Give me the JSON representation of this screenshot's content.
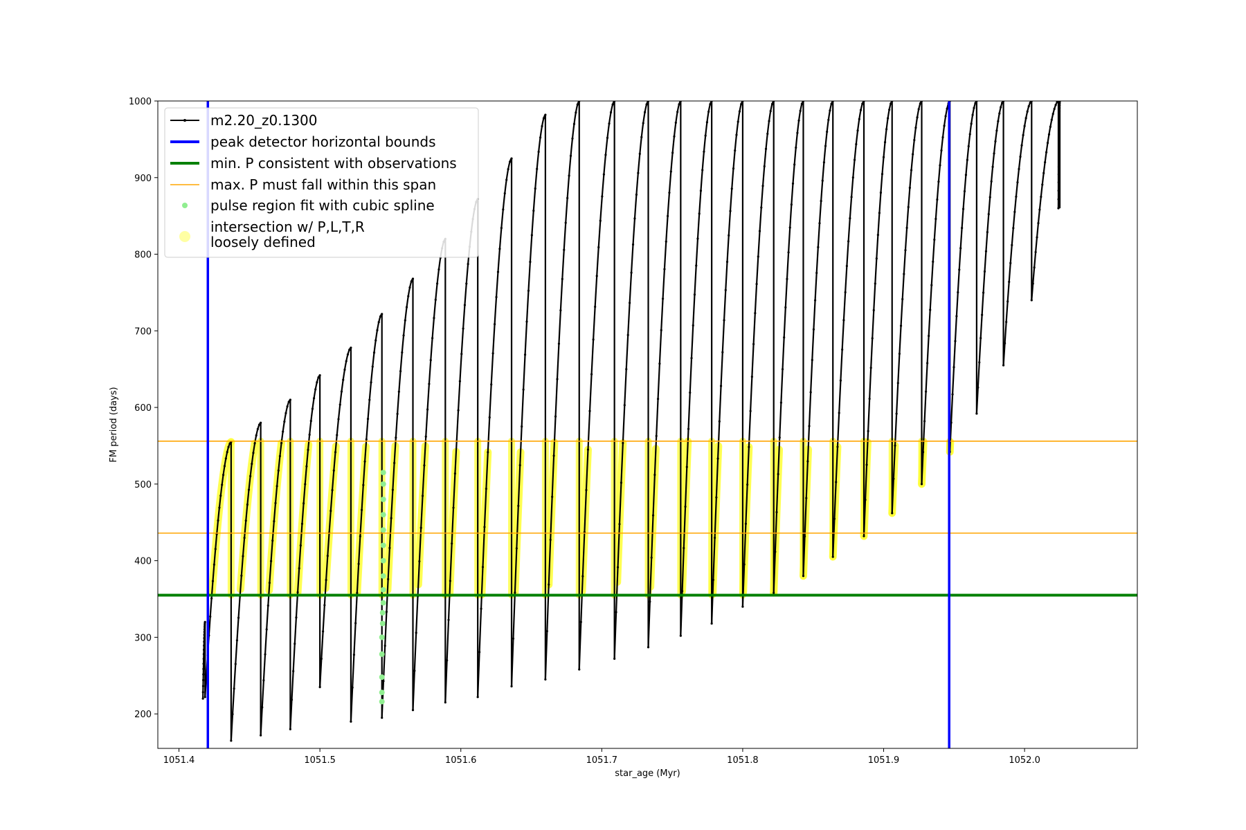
{
  "chart_data": {
    "type": "line",
    "xlabel": "star_age (Myr)",
    "ylabel": "FM period (days)",
    "xlim": [
      1051.385,
      1052.08
    ],
    "ylim": [
      155,
      1000
    ],
    "xticks": [
      1051.4,
      1051.5,
      1051.6,
      1051.7,
      1051.8,
      1051.9,
      1052.0
    ],
    "xtick_labels": [
      "1051.4",
      "1051.5",
      "1051.6",
      "1051.7",
      "1051.8",
      "1051.9",
      "1052.0"
    ],
    "yticks": [
      200,
      300,
      400,
      500,
      600,
      700,
      800,
      900,
      1000
    ],
    "ytick_labels": [
      "200",
      "300",
      "400",
      "500",
      "600",
      "700",
      "800",
      "900",
      "1000"
    ],
    "grid": false,
    "legend_position": "top-left",
    "legend": [
      {
        "key": "model",
        "label": "m2.20_z0.1300",
        "color": "#000000",
        "style": "line-marker"
      },
      {
        "key": "peak_bounds",
        "label": "peak detector horizontal bounds",
        "color": "#0000ff",
        "style": "thick-line"
      },
      {
        "key": "min_p",
        "label": "min. P consistent with observations",
        "color": "#008000",
        "style": "thick-line"
      },
      {
        "key": "max_p",
        "label": "max. P must fall within this span",
        "color": "#ffa500",
        "style": "thin-line"
      },
      {
        "key": "spline",
        "label": "pulse region fit with cubic spline",
        "color": "#90ee90",
        "style": "dot"
      },
      {
        "key": "intersection",
        "label": "intersection w/ P,L,T,R",
        "label_line2": "loosely defined",
        "color": "#ffff66",
        "style": "big-dot"
      }
    ],
    "vertical_lines": [
      {
        "name": "peak detector horizontal bounds",
        "x": 1051.4205,
        "color": "#0000ff"
      },
      {
        "name": "peak detector horizontal bounds",
        "x": 1051.9465,
        "color": "#0000ff"
      }
    ],
    "horizontal_lines": [
      {
        "name": "min. P consistent with observations",
        "y": 355,
        "color": "#008000"
      },
      {
        "name": "max. P must fall within this span",
        "y": 436,
        "color": "#ffa500"
      },
      {
        "name": "max. P must fall within this span",
        "y": 556,
        "color": "#ffa500"
      }
    ],
    "series": [
      {
        "name": "m2.20_z0.1300",
        "color": "#000000",
        "pulses": [
          {
            "start": 1051.417,
            "drop": 1051.4185,
            "min": 220,
            "peak": 320
          },
          {
            "start": 1051.4185,
            "drop": 1051.437,
            "min": 222,
            "peak": 555
          },
          {
            "start": 1051.437,
            "drop": 1051.458,
            "min": 165,
            "peak": 580
          },
          {
            "start": 1051.458,
            "drop": 1051.479,
            "min": 172,
            "peak": 610
          },
          {
            "start": 1051.479,
            "drop": 1051.5,
            "min": 180,
            "peak": 642
          },
          {
            "start": 1051.5,
            "drop": 1051.522,
            "min": 235,
            "peak": 678
          },
          {
            "start": 1051.522,
            "drop": 1051.544,
            "min": 190,
            "peak": 722
          },
          {
            "start": 1051.544,
            "drop": 1051.566,
            "min": 195,
            "peak": 768
          },
          {
            "start": 1051.566,
            "drop": 1051.589,
            "min": 205,
            "peak": 820
          },
          {
            "start": 1051.589,
            "drop": 1051.612,
            "min": 215,
            "peak": 872
          },
          {
            "start": 1051.612,
            "drop": 1051.636,
            "min": 222,
            "peak": 925
          },
          {
            "start": 1051.636,
            "drop": 1051.66,
            "min": 236,
            "peak": 982
          },
          {
            "start": 1051.66,
            "drop": 1051.684,
            "min": 245,
            "peak": 1000
          },
          {
            "start": 1051.684,
            "drop": 1051.709,
            "min": 258,
            "peak": 1000
          },
          {
            "start": 1051.709,
            "drop": 1051.733,
            "min": 272,
            "peak": 1000
          },
          {
            "start": 1051.733,
            "drop": 1051.756,
            "min": 287,
            "peak": 1000
          },
          {
            "start": 1051.756,
            "drop": 1051.778,
            "min": 302,
            "peak": 1000
          },
          {
            "start": 1051.778,
            "drop": 1051.8,
            "min": 318,
            "peak": 1000
          },
          {
            "start": 1051.8,
            "drop": 1051.822,
            "min": 340,
            "peak": 1000
          },
          {
            "start": 1051.822,
            "drop": 1051.843,
            "min": 358,
            "peak": 1000
          },
          {
            "start": 1051.843,
            "drop": 1051.864,
            "min": 380,
            "peak": 1000
          },
          {
            "start": 1051.864,
            "drop": 1051.886,
            "min": 405,
            "peak": 1000
          },
          {
            "start": 1051.886,
            "drop": 1051.906,
            "min": 432,
            "peak": 1000
          },
          {
            "start": 1051.906,
            "drop": 1051.927,
            "min": 462,
            "peak": 1000
          },
          {
            "start": 1051.927,
            "drop": 1051.947,
            "min": 500,
            "peak": 1000
          },
          {
            "start": 1051.947,
            "drop": 1051.966,
            "min": 542,
            "peak": 1000
          },
          {
            "start": 1051.966,
            "drop": 1051.985,
            "min": 592,
            "peak": 1000
          },
          {
            "start": 1051.985,
            "drop": 1052.005,
            "min": 655,
            "peak": 1000
          },
          {
            "start": 1052.005,
            "drop": 1052.024,
            "min": 740,
            "peak": 1000
          },
          {
            "start": 1052.024,
            "drop": 1052.025,
            "min": 860,
            "peak": 1000
          }
        ]
      },
      {
        "name": "pulse region fit with cubic spline",
        "color": "#90ee90",
        "points": [
          {
            "x": 1051.544,
            "y": 216
          },
          {
            "x": 1051.544,
            "y": 228
          },
          {
            "x": 1051.544,
            "y": 248
          },
          {
            "x": 1051.544,
            "y": 278
          },
          {
            "x": 1051.544,
            "y": 300
          },
          {
            "x": 1051.5445,
            "y": 318
          },
          {
            "x": 1051.5445,
            "y": 332
          },
          {
            "x": 1051.545,
            "y": 345
          },
          {
            "x": 1051.545,
            "y": 362
          },
          {
            "x": 1051.545,
            "y": 380
          },
          {
            "x": 1051.545,
            "y": 400
          },
          {
            "x": 1051.545,
            "y": 420
          },
          {
            "x": 1051.545,
            "y": 440
          },
          {
            "x": 1051.545,
            "y": 460
          },
          {
            "x": 1051.545,
            "y": 480
          },
          {
            "x": 1051.545,
            "y": 500
          },
          {
            "x": 1051.545,
            "y": 515
          }
        ]
      },
      {
        "name": "intersection w/ P,L,T,R loosely defined",
        "color": "#ffff66",
        "range_y": [
          355,
          556
        ]
      }
    ]
  }
}
